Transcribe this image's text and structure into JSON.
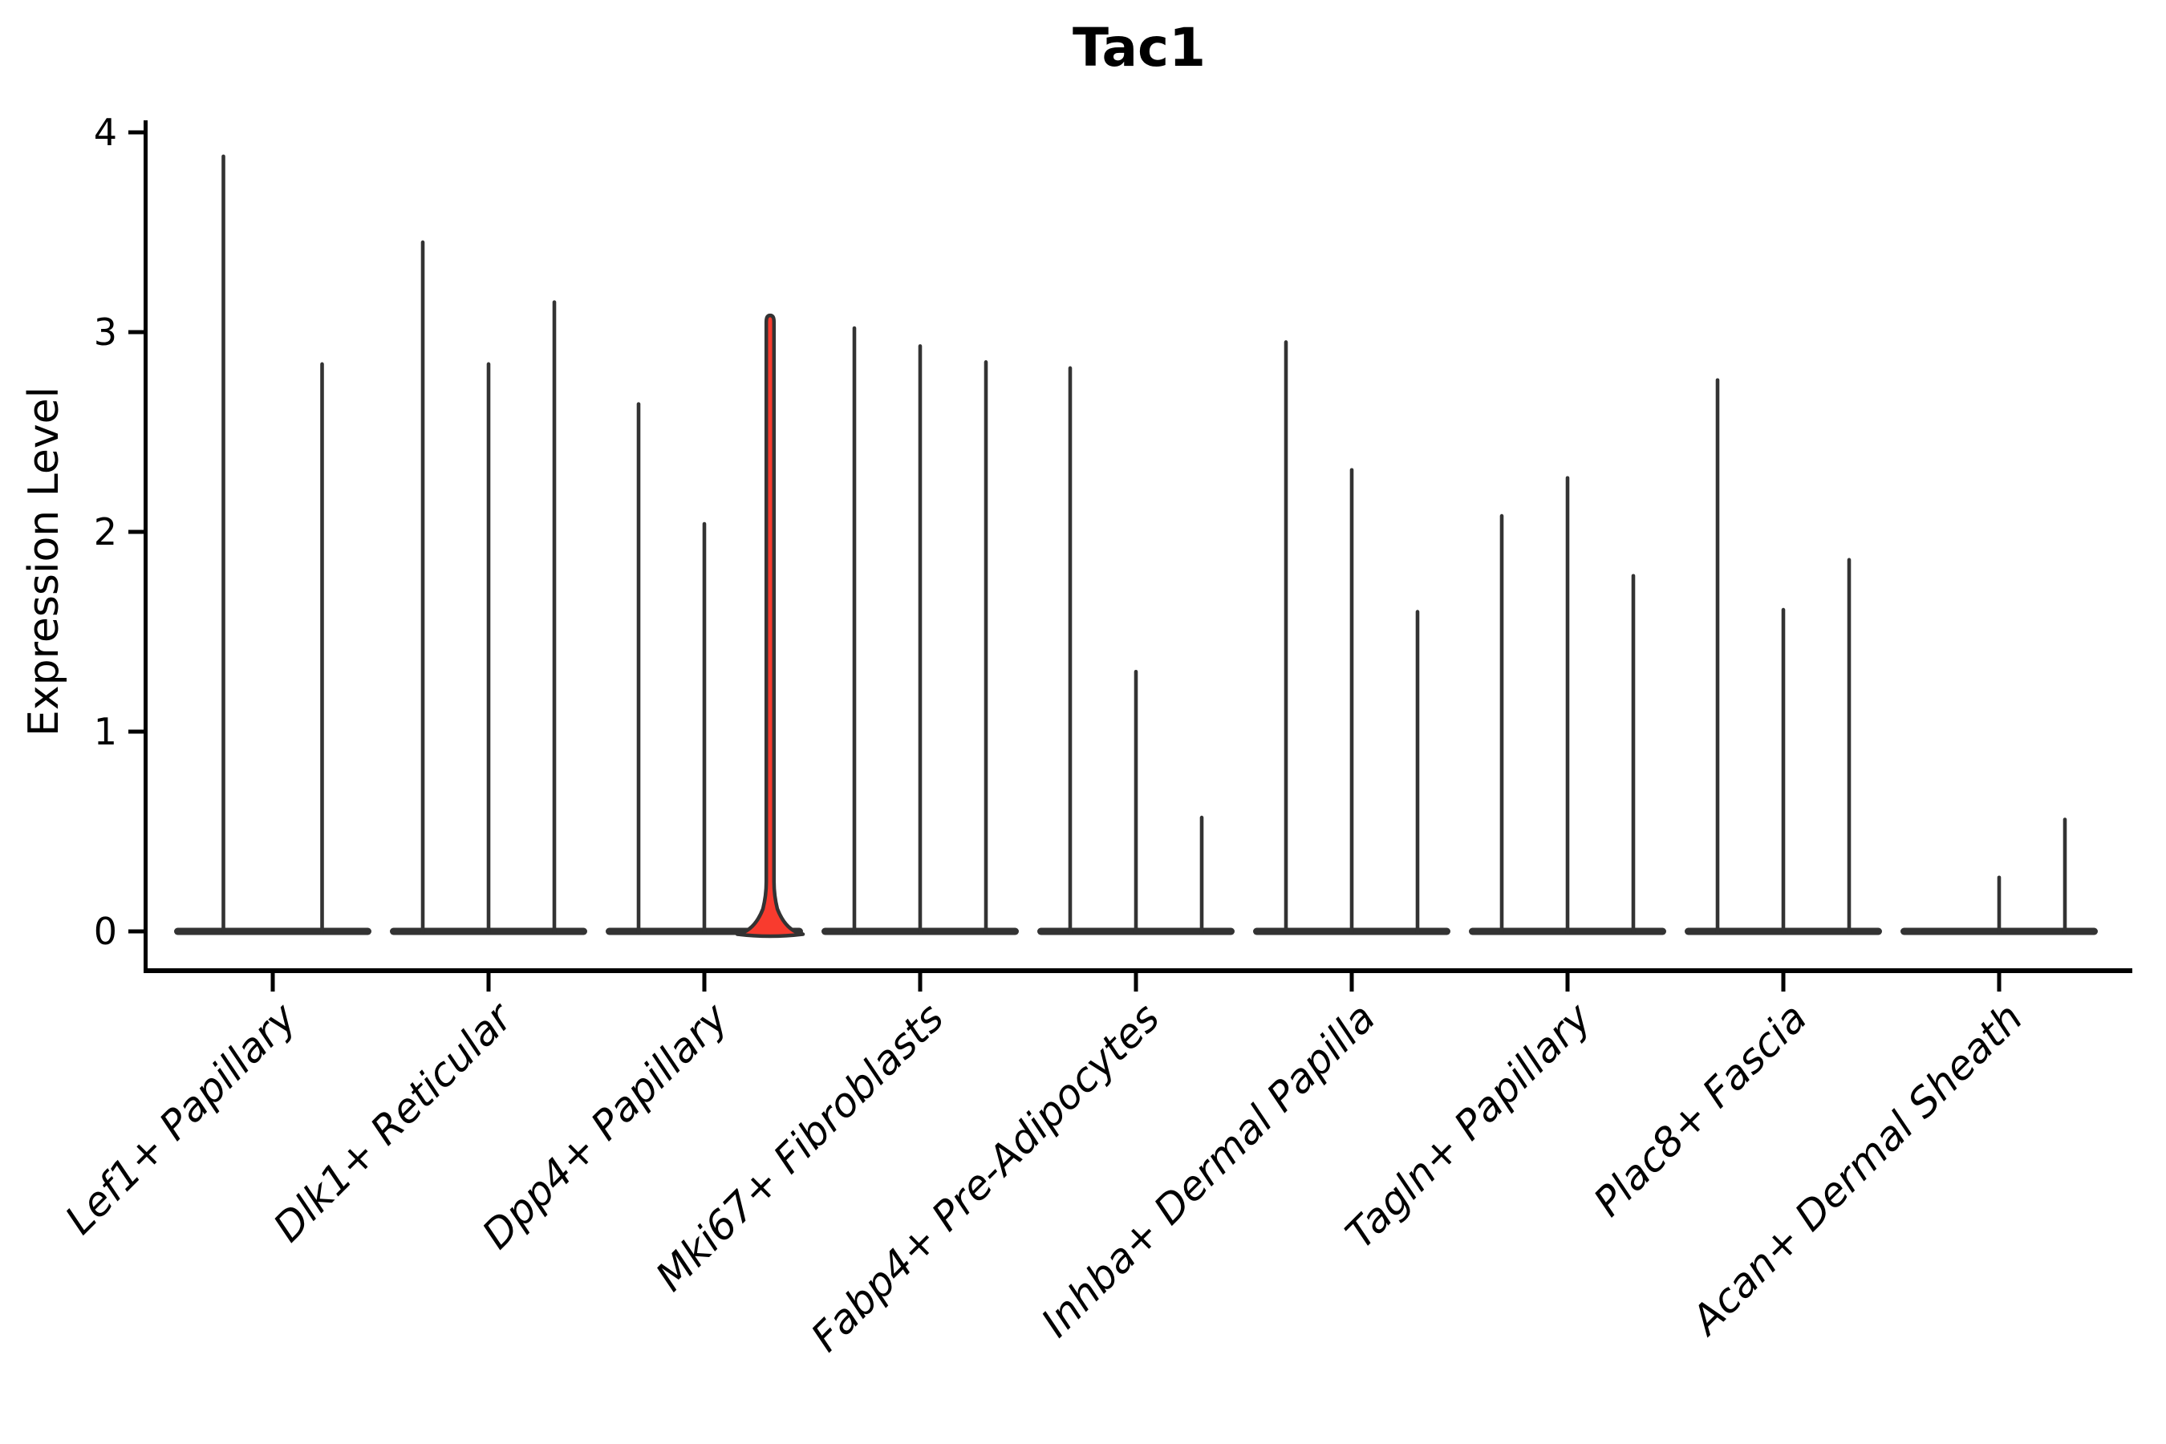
{
  "figure": {
    "title": "Tac1",
    "ylabel": "Expression Level"
  },
  "chart_data": {
    "type": "violin",
    "title": "Tac1",
    "xlabel": "",
    "ylabel": "Expression Level",
    "ylim": [
      0,
      4.08
    ],
    "yticks": [
      0,
      1,
      2,
      3,
      4
    ],
    "grid": false,
    "legend": "none",
    "x_tick_label_style": "italic, rotated 45deg, right-anchored",
    "violin_style": "zero-inflated: wide flat base at 0 with a thin spike rising to the max expression value",
    "categories": [
      "Lef1+ Papillary",
      "Dlk1+ Reticular",
      "Dpp4+ Papillary",
      "Mki67+ Fibroblasts",
      "Fabp4+ Pre-Adipocytes",
      "Inhba+ Dermal Papilla",
      "Tagln+ Papillary",
      "Plac8+ Fascia",
      "Acan+ Dermal Sheath"
    ],
    "groups": [
      {
        "category": "Lef1+ Papillary",
        "violin_peaks": [
          3.88,
          2.84
        ],
        "highlighted_violin_index": -1
      },
      {
        "category": "Dlk1+ Reticular",
        "violin_peaks": [
          3.45,
          2.84,
          3.15
        ],
        "highlighted_violin_index": -1
      },
      {
        "category": "Dpp4+ Papillary",
        "violin_peaks": [
          2.64,
          2.04,
          3.08
        ],
        "highlighted_violin_index": 2
      },
      {
        "category": "Mki67+ Fibroblasts",
        "violin_peaks": [
          3.02,
          2.93,
          2.85
        ],
        "highlighted_violin_index": -1
      },
      {
        "category": "Fabp4+ Pre-Adipocytes",
        "violin_peaks": [
          2.82,
          1.3,
          0.57
        ],
        "highlighted_violin_index": -1
      },
      {
        "category": "Inhba+ Dermal Papilla",
        "violin_peaks": [
          2.95,
          2.31,
          1.6
        ],
        "highlighted_violin_index": -1
      },
      {
        "category": "Tagln+ Papillary",
        "violin_peaks": [
          2.08,
          2.27,
          1.78
        ],
        "highlighted_violin_index": -1
      },
      {
        "category": "Plac8+ Fascia",
        "violin_peaks": [
          2.76,
          1.61,
          1.86
        ],
        "highlighted_violin_index": -1
      },
      {
        "category": "Acan+ Dermal Sheath",
        "violin_peaks": [
          0,
          0.27,
          0.56
        ],
        "highlighted_violin_index": -1
      }
    ],
    "colors": {
      "highlight_fill": "#f83b2e",
      "ink": "#333333",
      "text": "#000000",
      "background": "#ffffff"
    }
  }
}
